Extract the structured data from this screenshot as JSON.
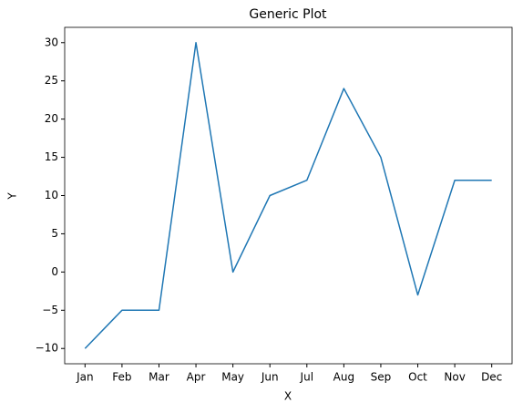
{
  "chart_data": {
    "type": "line",
    "title": "Generic Plot",
    "x_label": "X",
    "y_label": "Y",
    "categories": [
      "Jan",
      "Feb",
      "Mar",
      "Apr",
      "May",
      "Jun",
      "Jul",
      "Aug",
      "Sep",
      "Oct",
      "Nov",
      "Dec"
    ],
    "series": [
      {
        "name": "Y",
        "color": "#1f77b4",
        "values": [
          -10,
          -5,
          -5,
          30,
          0,
          10,
          12,
          24,
          15,
          -3,
          12,
          12
        ]
      }
    ],
    "ylim": [
      -12,
      32
    ],
    "yticks": [
      {
        "value": -10,
        "label": "−10"
      },
      {
        "value": -5,
        "label": "−5"
      },
      0,
      5,
      10,
      15,
      20,
      25,
      30
    ],
    "grid": false
  }
}
